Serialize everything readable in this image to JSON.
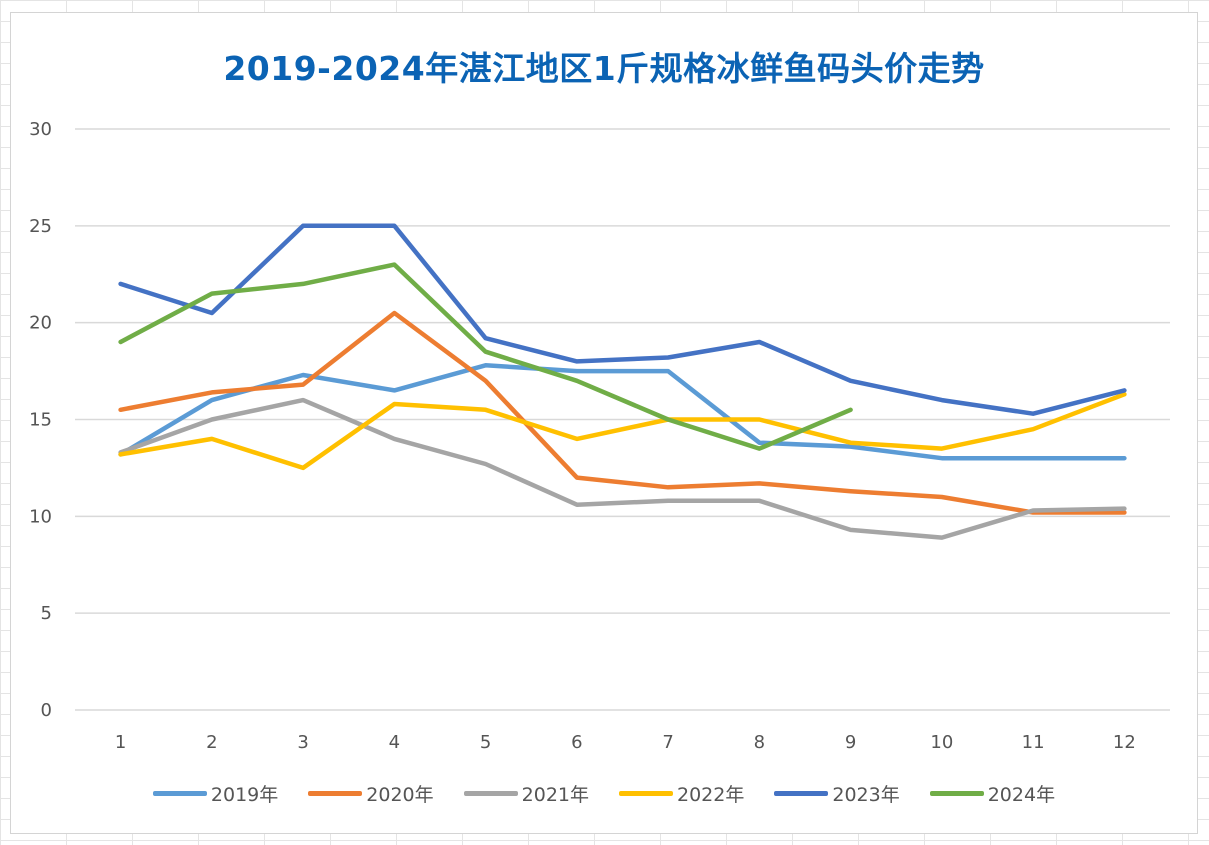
{
  "chart_data": {
    "type": "line",
    "title": "2019-2024年湛江地区1斤规格冰鲜鱼码头价走势",
    "categories": [
      "1",
      "2",
      "3",
      "4",
      "5",
      "6",
      "7",
      "8",
      "9",
      "10",
      "11",
      "12"
    ],
    "ylim": [
      0,
      30
    ],
    "yticks": [
      0,
      5,
      10,
      15,
      20,
      25,
      30
    ],
    "grid": true,
    "legend_position": "bottom",
    "series": [
      {
        "name": "2019年",
        "color": "#5b9bd5",
        "values": [
          13.2,
          16.0,
          17.3,
          16.5,
          17.8,
          17.5,
          17.5,
          13.8,
          13.6,
          13.0,
          13.0,
          13.0
        ]
      },
      {
        "name": "2020年",
        "color": "#ed7d31",
        "values": [
          15.5,
          16.4,
          16.8,
          20.5,
          17.0,
          12.0,
          11.5,
          11.7,
          11.3,
          11.0,
          10.2,
          10.2
        ]
      },
      {
        "name": "2021年",
        "color": "#a5a5a5",
        "values": [
          13.3,
          15.0,
          16.0,
          14.0,
          12.7,
          10.6,
          10.8,
          10.8,
          9.3,
          8.9,
          10.3,
          10.4
        ]
      },
      {
        "name": "2022年",
        "color": "#ffc000",
        "values": [
          13.2,
          14.0,
          12.5,
          15.8,
          15.5,
          14.0,
          15.0,
          15.0,
          13.8,
          13.5,
          14.5,
          16.3
        ]
      },
      {
        "name": "2023年",
        "color": "#4472c4",
        "values": [
          22.0,
          20.5,
          25.0,
          25.0,
          19.2,
          18.0,
          18.2,
          19.0,
          17.0,
          16.0,
          15.3,
          16.5
        ]
      },
      {
        "name": "2024年",
        "color": "#70ad47",
        "values": [
          19.0,
          21.5,
          22.0,
          23.0,
          18.5,
          17.0,
          15.0,
          13.5,
          15.5,
          null,
          null,
          null
        ]
      }
    ]
  }
}
